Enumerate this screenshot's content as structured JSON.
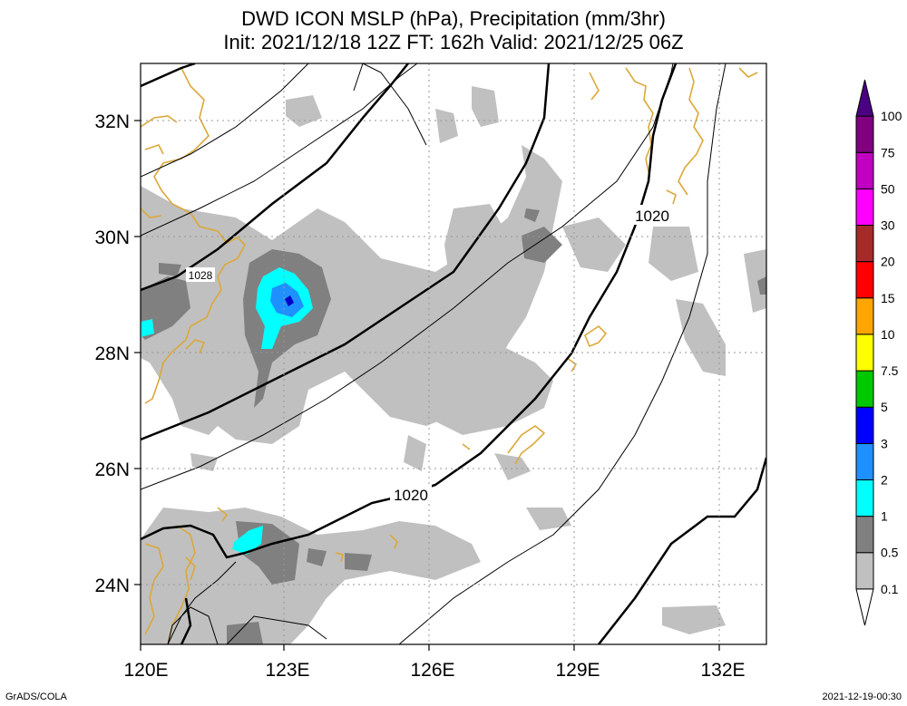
{
  "title": {
    "line1": "DWD ICON MSLP (hPa), Precipitation (mm/3hr)",
    "line2": "Init: 2021/12/18 12Z  FT: 162h  Valid: 2021/12/25 06Z"
  },
  "axes": {
    "lon_ticks": [
      "120E",
      "123E",
      "126E",
      "129E",
      "132E"
    ],
    "lat_ticks": [
      "32N",
      "30N",
      "28N",
      "26N",
      "24N"
    ]
  },
  "isobar_labels": [
    "1020",
    "1020",
    "1028"
  ],
  "colorbar": {
    "labels": [
      "0.1",
      "0.5",
      "1",
      "2",
      "3",
      "5",
      "7.5",
      "10",
      "15",
      "20",
      "30",
      "50",
      "75",
      "100"
    ],
    "colors": [
      "#ffffff",
      "#c0c0c0",
      "#808080",
      "#00ffff",
      "#1e90ff",
      "#0000ff",
      "#00c800",
      "#ffff00",
      "#ffa500",
      "#ff0000",
      "#a52a2a",
      "#ff00ff",
      "#c000c0",
      "#800080",
      "#4b0082"
    ]
  },
  "footer": {
    "left": "GrADS/COLA",
    "right": "2021-12-19-00:30"
  }
}
